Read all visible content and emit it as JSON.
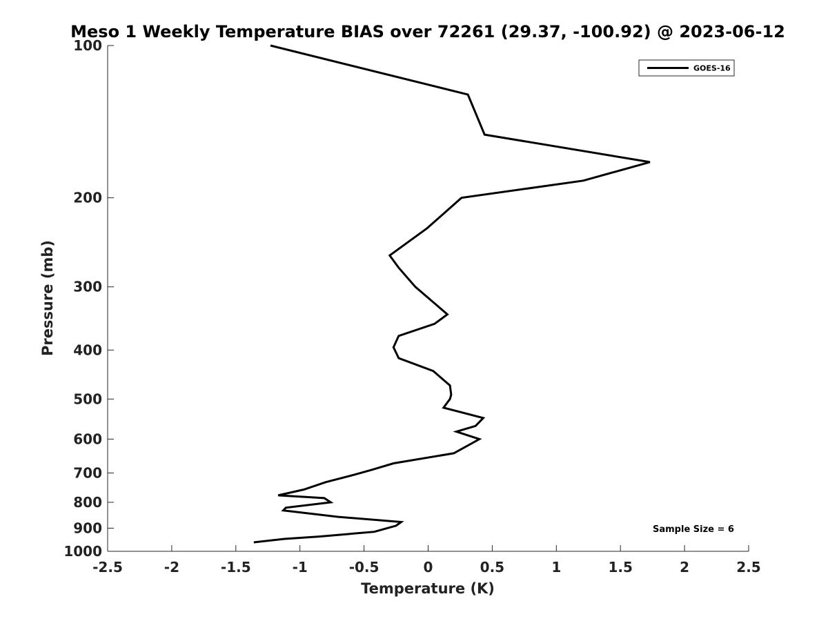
{
  "chart_data": {
    "type": "line",
    "title": "Meso 1 Weekly Temperature BIAS over 72261 (29.37, -100.92) @ 2023-06-12",
    "xlabel": "Temperature (K)",
    "ylabel": "Pressure (mb)",
    "xlim": [
      -2.5,
      2.5
    ],
    "ylim": [
      100,
      1000
    ],
    "y_scale": "log",
    "y_reversed": true,
    "grid": false,
    "legend_position": "top-right",
    "x_ticks": [
      -2.5,
      -2,
      -1.5,
      -1,
      -0.5,
      0,
      0.5,
      1,
      1.5,
      2,
      2.5
    ],
    "x_tick_labels": [
      "-2.5",
      "-2",
      "-1.5",
      "-1",
      "-0.5",
      "0",
      "0.5",
      "1",
      "1.5",
      "2",
      "2.5"
    ],
    "y_ticks": [
      100,
      200,
      300,
      400,
      500,
      600,
      700,
      800,
      900,
      1000
    ],
    "y_tick_labels": [
      "100",
      "200",
      "300",
      "400",
      "500",
      "600",
      "700",
      "800",
      "900",
      "1000"
    ],
    "series": [
      {
        "name": "GOES-16",
        "color": "#000000",
        "x": [
          -1.23,
          0.31,
          0.44,
          1.73,
          1.21,
          0.26,
          0.12,
          -0.01,
          -0.3,
          -0.23,
          -0.1,
          0.15,
          0.05,
          -0.23,
          -0.27,
          -0.23,
          0.04,
          0.17,
          0.18,
          0.17,
          0.12,
          0.43,
          0.37,
          0.22,
          0.4,
          0.2,
          -0.27,
          -0.44,
          -0.57,
          -0.8,
          -0.97,
          -1.17,
          -0.81,
          -0.76,
          -1.11,
          -1.13,
          -0.7,
          -0.21,
          -0.25,
          -0.42,
          -0.85,
          -1.12,
          -1.36
        ],
        "y": [
          100,
          125,
          150,
          170,
          185,
          200,
          215,
          230,
          260,
          275,
          300,
          340,
          355,
          375,
          395,
          415,
          440,
          470,
          490,
          500,
          520,
          545,
          565,
          580,
          600,
          640,
          670,
          690,
          705,
          730,
          755,
          775,
          785,
          800,
          820,
          830,
          855,
          875,
          890,
          915,
          935,
          945,
          960
        ]
      }
    ],
    "annotations": [
      "Sample Size = 6"
    ]
  }
}
